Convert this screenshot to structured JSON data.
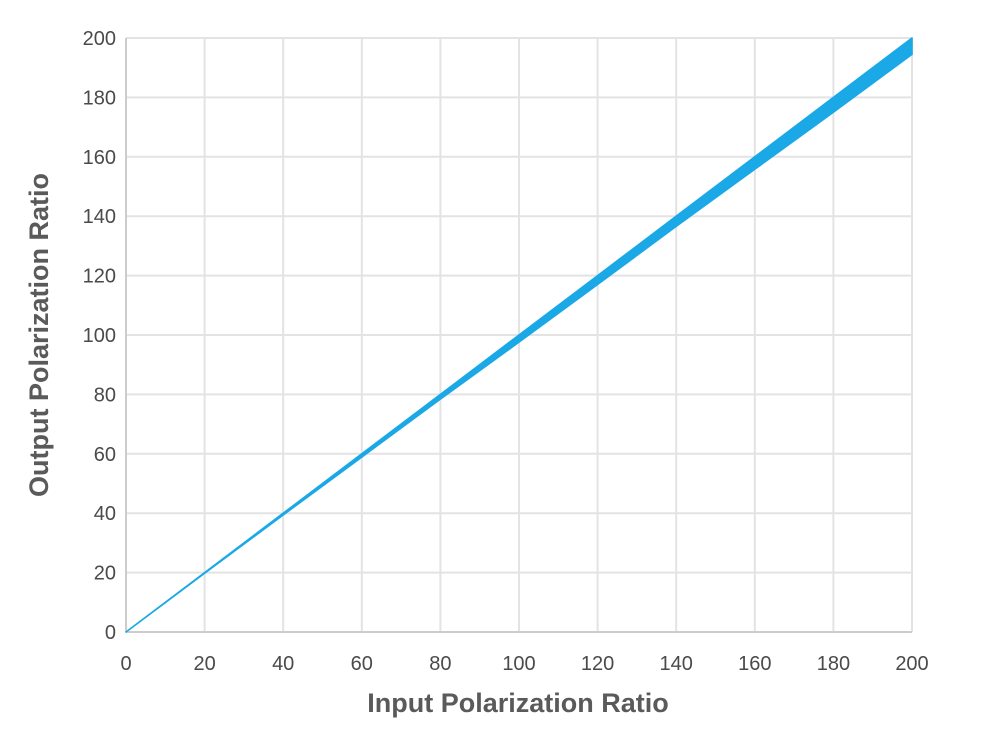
{
  "chart_data": {
    "type": "area",
    "title": "",
    "xlabel": "Input Polarization Ratio",
    "ylabel": "Output Polarization Ratio",
    "xlim": [
      0,
      200
    ],
    "ylim": [
      0,
      200
    ],
    "x_ticks": [
      "0",
      "20",
      "40",
      "60",
      "80",
      "100",
      "120",
      "140",
      "160",
      "180",
      "200"
    ],
    "y_ticks": [
      "0",
      "20",
      "40",
      "60",
      "80",
      "100",
      "120",
      "140",
      "160",
      "180",
      "200"
    ],
    "grid": true,
    "legend": "none",
    "series": [
      {
        "x": [
          0,
          20,
          40,
          60,
          80,
          100,
          120,
          140,
          160,
          180,
          200
        ],
        "y_upper": [
          0,
          20,
          40,
          60,
          80,
          100,
          120,
          140,
          160,
          180,
          200
        ],
        "y_lower": [
          0,
          19.8,
          39.4,
          58.9,
          78.4,
          97.6,
          117.0,
          136.6,
          155.8,
          175.0,
          194.5
        ]
      }
    ],
    "colors": {
      "band": "#1aa8e6",
      "grid": "#e3e3e3",
      "axis": "#cccccc"
    }
  }
}
